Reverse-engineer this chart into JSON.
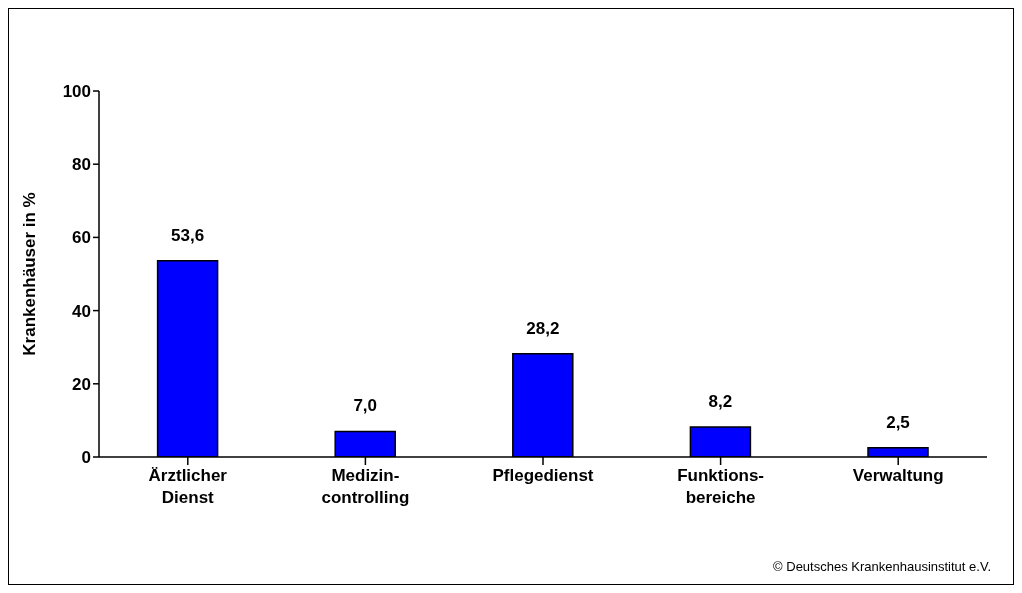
{
  "chart_data": {
    "type": "bar",
    "categories": [
      "Ärztlicher Dienst",
      "Medizin-controlling",
      "Pflegedienst",
      "Funktions-bereiche",
      "Verwaltung"
    ],
    "values": [
      53.6,
      7.0,
      28.2,
      8.2,
      2.5
    ],
    "value_labels": [
      "53,6",
      "7,0",
      "28,2",
      "8,2",
      "2,5"
    ],
    "color": "#0000ff",
    "ylabel": "Krankenhäuser in %",
    "ylim": [
      0,
      100
    ],
    "yticks": [
      0,
      20,
      40,
      60,
      80,
      100
    ],
    "grid": false,
    "annotations": [
      "© Deutsches Krankenhausinstitut e.V."
    ]
  }
}
